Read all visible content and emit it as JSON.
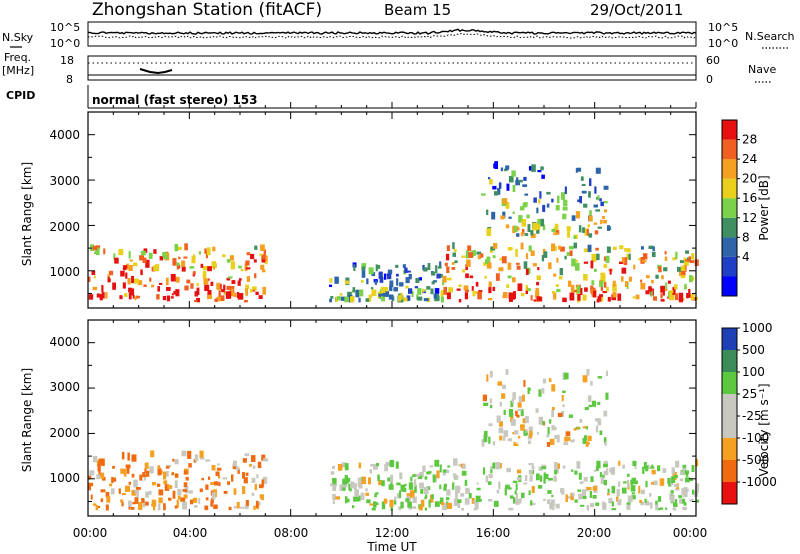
{
  "header": {
    "title": "Zhongshan Station (fitACF)",
    "beam": "Beam 15",
    "date": "29/Oct/2011"
  },
  "strip_panels": {
    "nsky": {
      "left_label": "N.Sky",
      "right_label": "N.Search",
      "ticks": [
        "10^5",
        "10^0"
      ]
    },
    "freq": {
      "left_label_1": "Freq.",
      "left_label_2": "[MHz]",
      "left_ticks": [
        "18",
        "8"
      ],
      "right_label": "Nave",
      "right_ticks": [
        "60",
        "0"
      ]
    },
    "cpid": {
      "left_label": "CPID",
      "value": "normal (fast stereo) 153"
    }
  },
  "time_axis": {
    "label": "Time UT",
    "ticks": [
      "00:00",
      "04:00",
      "08:00",
      "12:00",
      "16:00",
      "20:00",
      "00:00"
    ]
  },
  "panels": {
    "power": {
      "ylabel": "Slant Range [km]",
      "yticks": [
        "4000",
        "3000",
        "2000",
        "1000"
      ],
      "colorbar_label": "Power [dB]",
      "colorbar_ticks": [
        "28",
        "24",
        "20",
        "16",
        "12",
        "8",
        "4"
      ]
    },
    "velocity": {
      "ylabel": "Slant Range [km]",
      "yticks": [
        "4000",
        "3000",
        "2000",
        "1000"
      ],
      "colorbar_label": "Velocity [m s⁻¹]",
      "colorbar_ticks": [
        "1000",
        "500",
        "100",
        "25",
        "-25",
        "-100",
        "-500",
        "-1000"
      ]
    }
  },
  "chart_data": [
    {
      "type": "heatmap",
      "title": "Zhongshan Station (fitACF) Beam 15 29/Oct/2011",
      "variable": "Power [dB]",
      "xlabel": "Time UT",
      "ylabel": "Slant Range [km]",
      "xlim": [
        0,
        24
      ],
      "ylim": [
        180,
        4500
      ],
      "color_scale": {
        "levels": [
          0,
          4,
          8,
          12,
          16,
          20,
          24,
          28,
          32
        ],
        "colors": [
          "#0000ff",
          "#1f3fc4",
          "#2e64a8",
          "#3f8f62",
          "#7ad24a",
          "#e8d01c",
          "#f5a020",
          "#f06020",
          "#e61010"
        ]
      },
      "regions": [
        {
          "t": [
            0.0,
            7.0
          ],
          "range_km": [
            300,
            1500
          ],
          "dominant_db": 24,
          "note": "near-range echoes, strongest below 800 km"
        },
        {
          "t": [
            9.5,
            14.0
          ],
          "range_km": [
            300,
            1100
          ],
          "dominant_db": 8,
          "note": "sparse weak echoes"
        },
        {
          "t": [
            14.0,
            24.0
          ],
          "range_km": [
            300,
            1500
          ],
          "dominant_db": 20,
          "note": "band of echoes"
        },
        {
          "t": [
            15.5,
            20.5
          ],
          "range_km": [
            1700,
            3300
          ],
          "dominant_db": 8,
          "note": "far-range patches"
        }
      ]
    },
    {
      "type": "heatmap",
      "variable": "Velocity [m s-1]",
      "xlabel": "Time UT",
      "ylabel": "Slant Range [km]",
      "xlim": [
        0,
        24
      ],
      "ylim": [
        180,
        4500
      ],
      "color_scale": {
        "levels": [
          -1000,
          -500,
          -100,
          -25,
          25,
          100,
          500,
          1000
        ],
        "colors": [
          "#e61010",
          "#f06a10",
          "#f5a020",
          "#c8c8c0",
          "#c8c8c0",
          "#5cc840",
          "#3c8c5a",
          "#1f3fb4"
        ]
      },
      "regions": [
        {
          "t": [
            0.0,
            7.0
          ],
          "range_km": [
            300,
            1500
          ],
          "dominant_velocity_ms": -100,
          "note": "mixed orange/green/grey"
        },
        {
          "t": [
            9.5,
            24.0
          ],
          "range_km": [
            300,
            1300
          ],
          "dominant_velocity_ms": 100,
          "note": "mostly green"
        },
        {
          "t": [
            15.5,
            20.5
          ],
          "range_km": [
            1700,
            3300
          ],
          "dominant_velocity_ms": 25,
          "note": "green and grey patches"
        }
      ]
    }
  ]
}
